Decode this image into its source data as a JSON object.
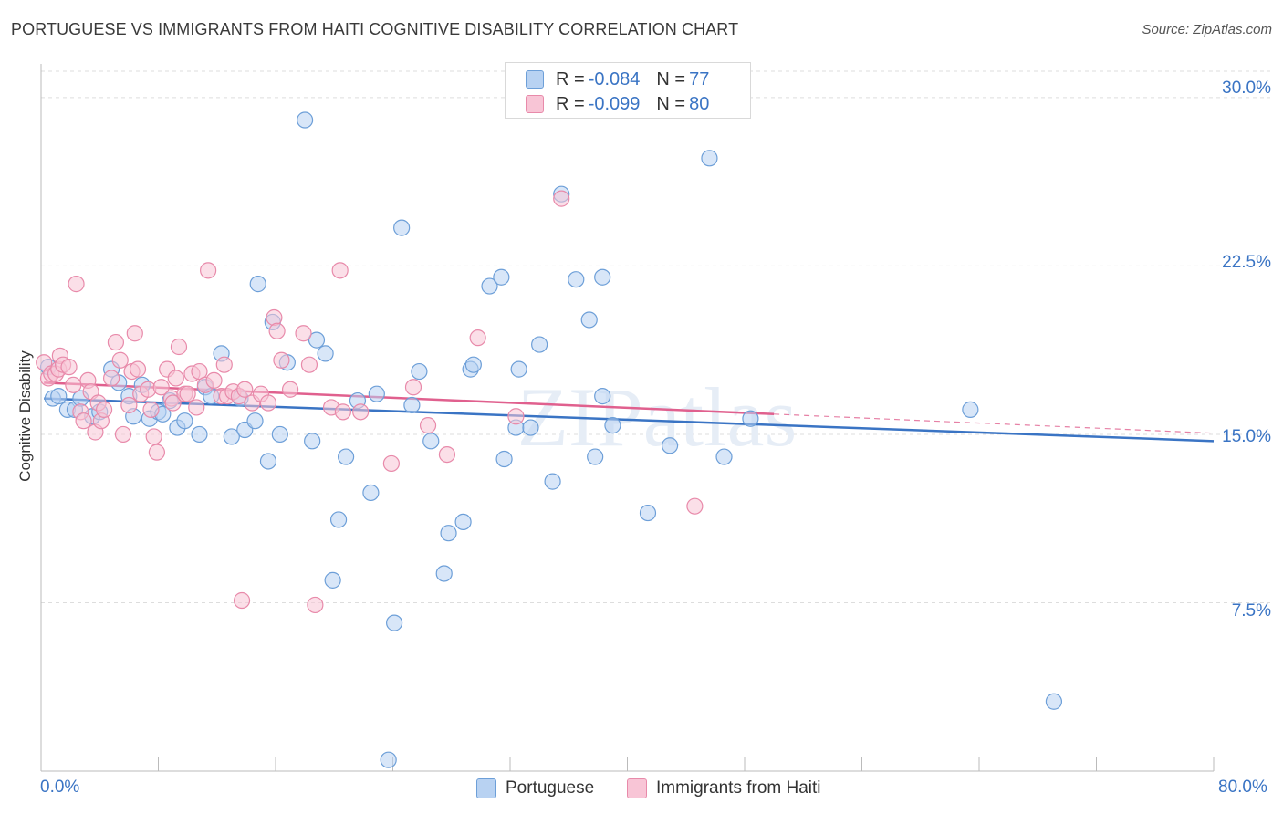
{
  "title": "PORTUGUESE VS IMMIGRANTS FROM HAITI COGNITIVE DISABILITY CORRELATION CHART",
  "source": "Source: ZipAtlas.com",
  "watermark": "ZIPatlas",
  "legend": {
    "r_label": "R =",
    "n_label": "N =",
    "rows": [
      {
        "r": "-0.084",
        "n": "77",
        "fill": "#b8d2f2",
        "stroke": "#6d9fd8"
      },
      {
        "r": "-0.099",
        "n": "80",
        "fill": "#f8c5d6",
        "stroke": "#e88aaa"
      }
    ]
  },
  "chart_data": {
    "type": "scatter",
    "xlabel": "",
    "ylabel": "Cognitive Disability",
    "xlim": [
      0,
      80
    ],
    "ylim": [
      0,
      31.5
    ],
    "x_tick_labels": [
      "0.0%",
      "80.0%"
    ],
    "y_ticks": [
      7.5,
      15.0,
      22.5,
      30.0
    ],
    "y_tick_labels": [
      "7.5%",
      "15.0%",
      "22.5%",
      "30.0%"
    ],
    "grid": true,
    "legend_position": "bottom",
    "series": [
      {
        "name": "Portuguese",
        "color": "#3a74c4",
        "fill": "#b8d2f2",
        "stroke": "#6d9fd8",
        "trend": {
          "x0": 0.2,
          "y0": 16.6,
          "x1": 80,
          "y1": 14.7
        },
        "points": [
          [
            0.5,
            18.0
          ],
          [
            0.8,
            16.6
          ],
          [
            1.2,
            16.7
          ],
          [
            1.8,
            16.1
          ],
          [
            2.3,
            16.1
          ],
          [
            2.7,
            16.6
          ],
          [
            3.5,
            15.8
          ],
          [
            4.0,
            16.0
          ],
          [
            4.8,
            17.9
          ],
          [
            5.3,
            17.3
          ],
          [
            6.0,
            16.7
          ],
          [
            6.3,
            15.8
          ],
          [
            6.9,
            17.2
          ],
          [
            7.4,
            15.7
          ],
          [
            8.0,
            16.0
          ],
          [
            8.3,
            15.9
          ],
          [
            8.8,
            16.5
          ],
          [
            9.3,
            15.3
          ],
          [
            9.8,
            15.6
          ],
          [
            10.8,
            15.0
          ],
          [
            11.2,
            17.1
          ],
          [
            11.6,
            16.7
          ],
          [
            12.3,
            18.6
          ],
          [
            13.0,
            14.9
          ],
          [
            13.6,
            16.6
          ],
          [
            13.9,
            15.2
          ],
          [
            14.6,
            15.6
          ],
          [
            14.8,
            21.7
          ],
          [
            15.5,
            13.8
          ],
          [
            15.8,
            20.0
          ],
          [
            16.3,
            15.0
          ],
          [
            16.8,
            18.2
          ],
          [
            18.0,
            29.0
          ],
          [
            18.5,
            14.7
          ],
          [
            18.8,
            19.2
          ],
          [
            19.4,
            18.6
          ],
          [
            19.9,
            8.5
          ],
          [
            20.3,
            11.2
          ],
          [
            20.8,
            14.0
          ],
          [
            21.6,
            16.5
          ],
          [
            22.5,
            12.4
          ],
          [
            22.9,
            16.8
          ],
          [
            23.7,
            0.5
          ],
          [
            24.1,
            6.6
          ],
          [
            24.6,
            24.2
          ],
          [
            25.3,
            16.3
          ],
          [
            25.8,
            17.8
          ],
          [
            26.6,
            14.7
          ],
          [
            27.5,
            8.8
          ],
          [
            27.8,
            10.6
          ],
          [
            28.8,
            11.1
          ],
          [
            29.3,
            17.9
          ],
          [
            29.5,
            18.1
          ],
          [
            30.6,
            21.6
          ],
          [
            31.4,
            22.0
          ],
          [
            31.6,
            13.9
          ],
          [
            32.4,
            15.3
          ],
          [
            32.6,
            17.9
          ],
          [
            33.4,
            15.3
          ],
          [
            34.0,
            19.0
          ],
          [
            34.9,
            12.9
          ],
          [
            35.5,
            25.7
          ],
          [
            36.5,
            21.9
          ],
          [
            37.4,
            20.1
          ],
          [
            37.8,
            14.0
          ],
          [
            38.3,
            16.7
          ],
          [
            38.3,
            22.0
          ],
          [
            39.0,
            15.4
          ],
          [
            41.4,
            11.5
          ],
          [
            42.9,
            14.5
          ],
          [
            45.6,
            27.3
          ],
          [
            46.6,
            14.0
          ],
          [
            48.4,
            15.7
          ],
          [
            63.4,
            16.1
          ],
          [
            69.1,
            3.1
          ]
        ]
      },
      {
        "name": "Immigrants from Haiti",
        "color": "#e0608e",
        "fill": "#f8c5d6",
        "stroke": "#e88aaa",
        "trend": {
          "x0": 0.2,
          "y0": 17.3,
          "x1": 50,
          "y1": 15.9
        },
        "trend_ext": {
          "x0": 50,
          "y0": 15.9,
          "x1": 80,
          "y1": 15.05
        },
        "points": [
          [
            0.2,
            18.2
          ],
          [
            0.5,
            17.5
          ],
          [
            0.7,
            17.7
          ],
          [
            1.0,
            17.7
          ],
          [
            1.2,
            17.9
          ],
          [
            1.3,
            18.5
          ],
          [
            1.5,
            18.1
          ],
          [
            1.9,
            18.0
          ],
          [
            2.2,
            17.2
          ],
          [
            2.4,
            21.7
          ],
          [
            2.7,
            16.0
          ],
          [
            2.9,
            15.6
          ],
          [
            3.2,
            17.4
          ],
          [
            3.4,
            16.9
          ],
          [
            3.7,
            15.1
          ],
          [
            3.9,
            16.4
          ],
          [
            4.1,
            15.6
          ],
          [
            4.3,
            16.1
          ],
          [
            4.8,
            17.5
          ],
          [
            5.1,
            19.1
          ],
          [
            5.4,
            18.3
          ],
          [
            5.6,
            15.0
          ],
          [
            6.0,
            16.3
          ],
          [
            6.2,
            17.8
          ],
          [
            6.4,
            19.5
          ],
          [
            6.6,
            17.9
          ],
          [
            6.8,
            16.8
          ],
          [
            7.3,
            17.0
          ],
          [
            7.5,
            16.1
          ],
          [
            7.7,
            14.9
          ],
          [
            7.9,
            14.2
          ],
          [
            8.2,
            17.1
          ],
          [
            8.6,
            17.9
          ],
          [
            8.9,
            16.6
          ],
          [
            9.0,
            16.4
          ],
          [
            9.2,
            17.5
          ],
          [
            9.4,
            18.9
          ],
          [
            9.8,
            16.8
          ],
          [
            10.0,
            16.8
          ],
          [
            10.3,
            17.7
          ],
          [
            10.6,
            16.2
          ],
          [
            10.8,
            17.8
          ],
          [
            11.2,
            17.2
          ],
          [
            11.4,
            22.3
          ],
          [
            11.8,
            17.4
          ],
          [
            12.3,
            16.7
          ],
          [
            12.5,
            18.1
          ],
          [
            12.7,
            16.7
          ],
          [
            13.1,
            16.9
          ],
          [
            13.5,
            16.7
          ],
          [
            13.7,
            7.6
          ],
          [
            13.9,
            17.0
          ],
          [
            14.4,
            16.4
          ],
          [
            15.0,
            16.8
          ],
          [
            15.5,
            16.4
          ],
          [
            15.9,
            20.2
          ],
          [
            16.1,
            19.6
          ],
          [
            16.4,
            18.3
          ],
          [
            17.0,
            17.0
          ],
          [
            17.9,
            19.5
          ],
          [
            18.3,
            18.1
          ],
          [
            18.7,
            7.4
          ],
          [
            19.8,
            16.2
          ],
          [
            20.4,
            22.3
          ],
          [
            20.6,
            16.0
          ],
          [
            21.8,
            16.0
          ],
          [
            23.9,
            13.7
          ],
          [
            25.4,
            17.1
          ],
          [
            26.4,
            15.4
          ],
          [
            27.7,
            14.1
          ],
          [
            29.8,
            19.3
          ],
          [
            32.4,
            15.8
          ],
          [
            35.5,
            25.5
          ],
          [
            44.6,
            11.8
          ]
        ]
      }
    ]
  }
}
